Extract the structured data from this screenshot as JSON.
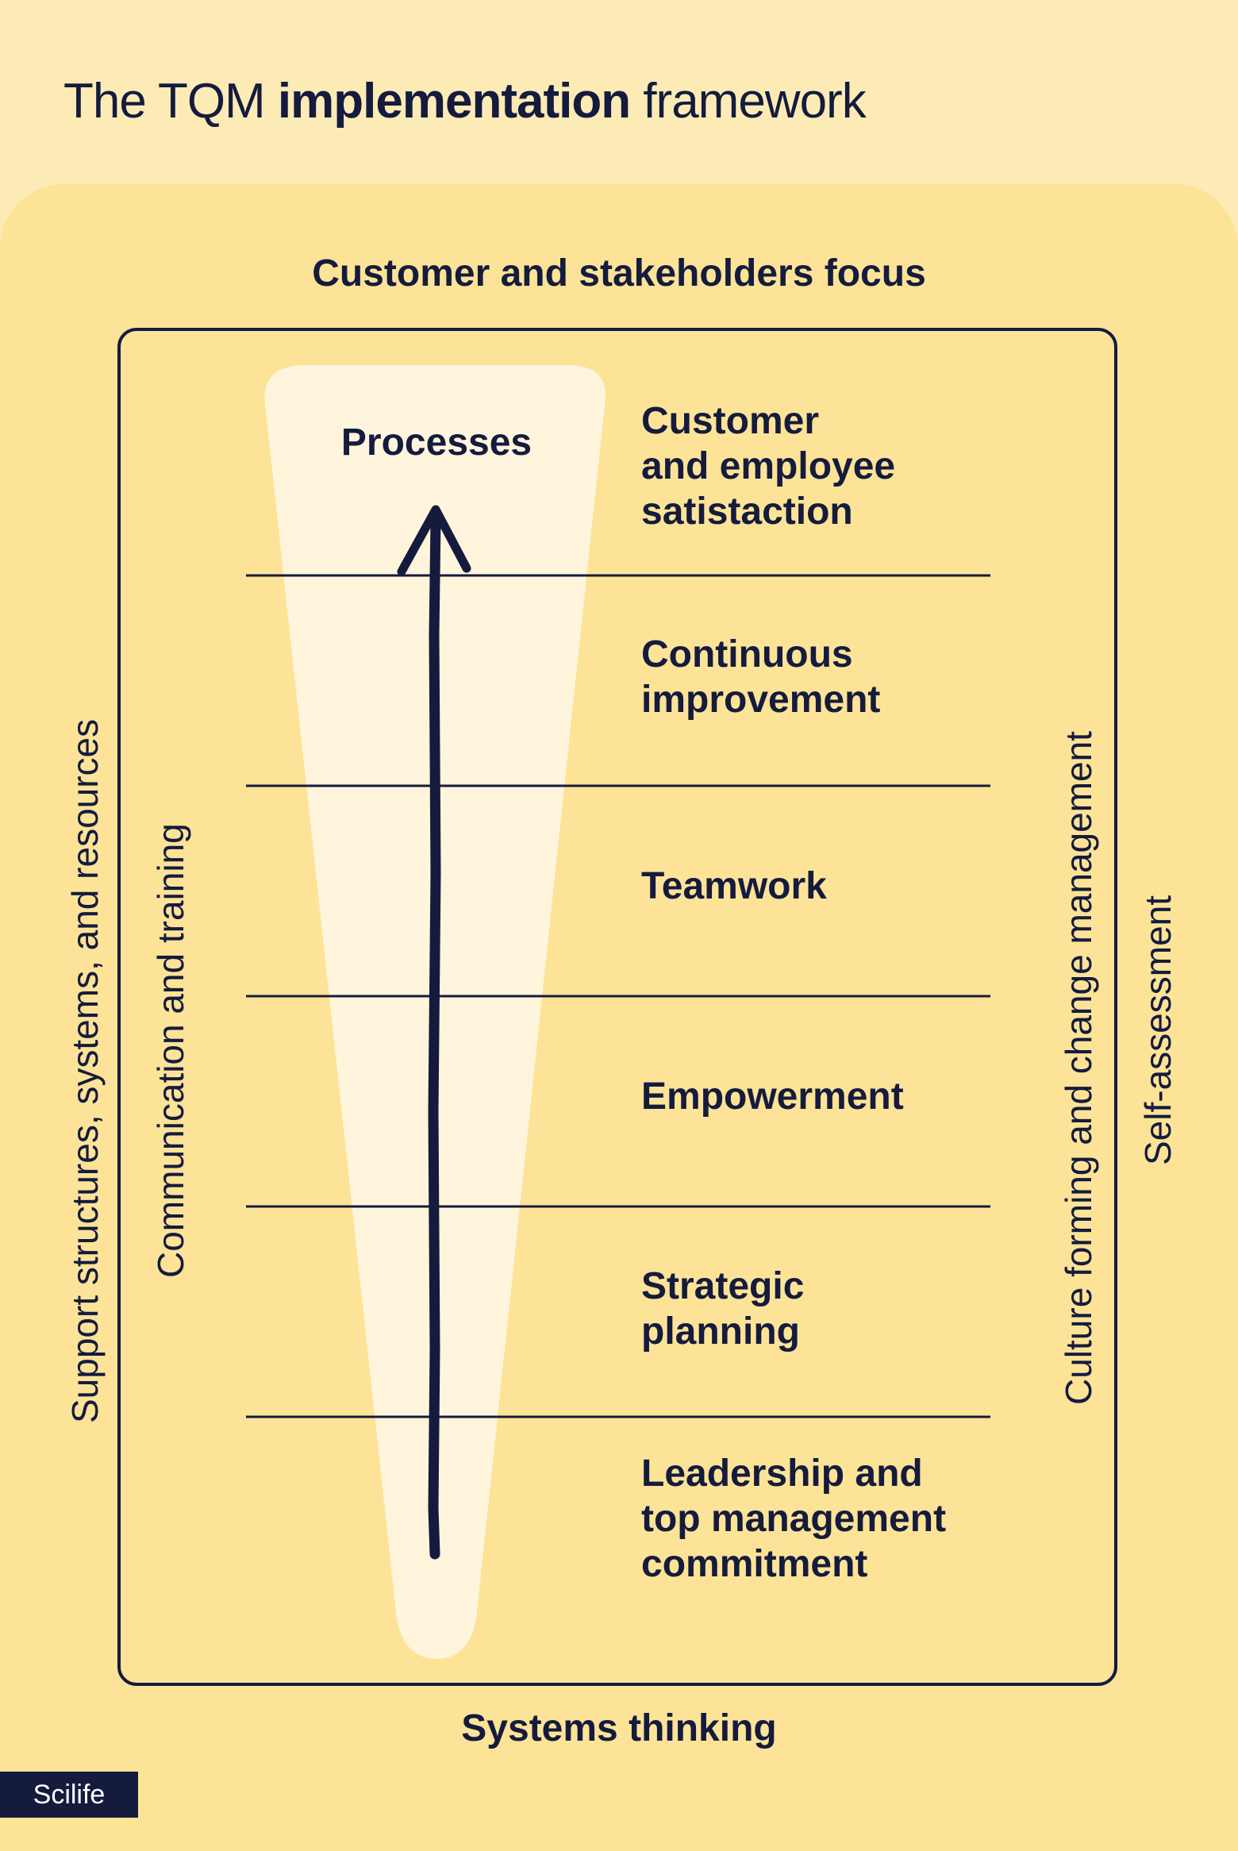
{
  "title": {
    "part1": "The TQM ",
    "bold": "implementation",
    "part2": " framework"
  },
  "top_label": "Customer and stakeholders focus",
  "bottom_label": "Systems thinking",
  "left_outer": "Support structures, systems, and resources",
  "left_inner": "Communication and training",
  "right_inner": "Culture forming and change management",
  "right_outer": "Self-assessment",
  "funnel_label": "Processes",
  "rows": [
    {
      "lines": [
        "Customer",
        "and employee",
        "satistaction"
      ]
    },
    {
      "lines": [
        "Continuous",
        "improvement"
      ]
    },
    {
      "lines": [
        "Teamwork"
      ]
    },
    {
      "lines": [
        "Empowerment"
      ]
    },
    {
      "lines": [
        "Strategic",
        "planning"
      ]
    },
    {
      "lines": [
        "Leadership and",
        "top management",
        "commitment"
      ]
    }
  ],
  "logo": "Scilife",
  "colors": {
    "background": "#fdebb6",
    "panel": "#fde397",
    "funnel": "#fef5dc",
    "ink": "#141b3d"
  }
}
